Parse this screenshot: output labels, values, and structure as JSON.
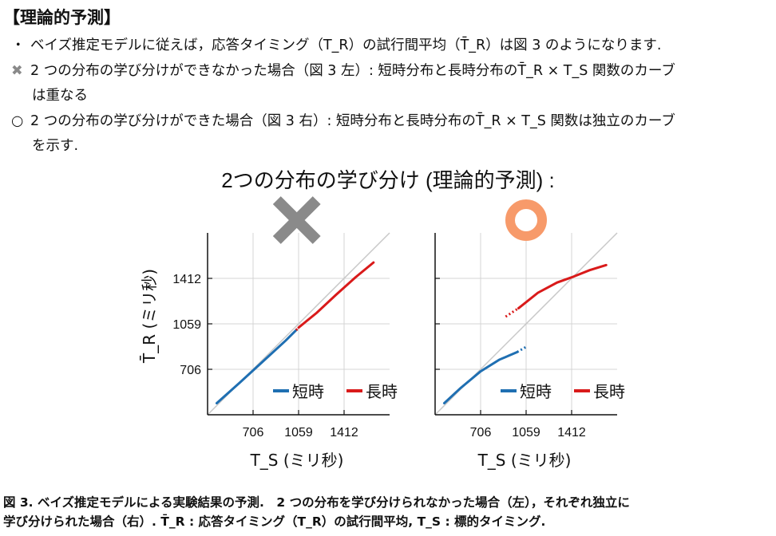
{
  "heading": "【理論的予測】",
  "bullets": [
    {
      "marker": "・",
      "text": "ベイズ推定モデルに従えば，応答タイミング（T_R）の試行間平均（T̄_R）は図 3 のようになります."
    },
    {
      "marker": "✖",
      "text": "2 つの分布の学び分けができなかった場合（図 3 左）: 短時分布と長時分布のT̄_R × T_S 関数のカーブ",
      "cont": "は重なる"
    },
    {
      "marker": "○",
      "text": "2 つの分布の学び分けができた場合（図 3 右）: 短時分布と長時分布のT̄_R × T_S 関数は独立のカーブ",
      "cont": "を示す."
    }
  ],
  "chart_title": "2つの分布の学び分け (理論的予測) :",
  "caption_line1": "図 3.  ベイズ推定モデルによる実験結果の予測.　2 つの分布を学び分けられなかった場合（左），それぞれ独立に",
  "caption_line2": "学び分けられた場合（右）. T̄_R : 応答タイミング（T_R）の試行間平均, T_S : 標的タイミング.",
  "colors": {
    "short": "#1f6fb2",
    "long": "#d91a1a",
    "identity": "#c8c8c8",
    "grid": "#d4d4d4",
    "x_mark": "#8a8a8a",
    "o_mark": "#f79a6a"
  },
  "chart_data": [
    {
      "type": "line",
      "panel": "left",
      "marker_icon": "x-mark-icon",
      "xlabel": "T_S (ミリ秒)",
      "ylabel": "T̄_R (ミリ秒)",
      "xticks": [
        706,
        1059,
        1412
      ],
      "yticks": [
        706,
        1059,
        1412
      ],
      "xlim": [
        353,
        1765
      ],
      "ylim": [
        353,
        1765
      ],
      "grid": true,
      "legend": "bottom-right",
      "series": [
        {
          "name": "短時",
          "color": "#1f6fb2",
          "x": [
            424,
            600,
            780,
            960,
            1040
          ],
          "y": [
            443,
            600,
            765,
            930,
            1010
          ],
          "dotted_x": [
            1040,
            1059
          ],
          "dotted_y": [
            1010,
            1030
          ]
        },
        {
          "name": "長時",
          "color": "#d91a1a",
          "x": [
            1059,
            1200,
            1350,
            1500,
            1640
          ],
          "y": [
            1030,
            1145,
            1285,
            1420,
            1535
          ],
          "dotted_x": [
            1040,
            1059
          ],
          "dotted_y": [
            1010,
            1030
          ]
        }
      ]
    },
    {
      "type": "line",
      "panel": "right",
      "marker_icon": "o-mark-icon",
      "xlabel": "T_S (ミリ秒)",
      "ylabel": "",
      "xticks": [
        706,
        1059,
        1412
      ],
      "yticks": [
        706,
        1059,
        1412
      ],
      "xlim": [
        353,
        1765
      ],
      "ylim": [
        353,
        1765
      ],
      "grid": true,
      "legend": "bottom-right",
      "series": [
        {
          "name": "短時",
          "color": "#1f6fb2",
          "x": [
            424,
            550,
            706,
            850,
            990
          ],
          "y": [
            443,
            560,
            690,
            780,
            840
          ],
          "dotted_x": [
            990,
            1059
          ],
          "dotted_y": [
            840,
            880
          ]
        },
        {
          "name": "長時",
          "color": "#d91a1a",
          "x": [
            1000,
            1150,
            1300,
            1412,
            1550,
            1680
          ],
          "y": [
            1180,
            1300,
            1380,
            1420,
            1475,
            1515
          ],
          "dotted_x": [
            900,
            1000
          ],
          "dotted_y": [
            1115,
            1180
          ]
        }
      ]
    }
  ],
  "legend": {
    "short": "短時",
    "long": "長時"
  },
  "tick_labels": {
    "x": [
      "706",
      "1059",
      "1412"
    ],
    "y": [
      "1412",
      "1059",
      "706"
    ]
  }
}
